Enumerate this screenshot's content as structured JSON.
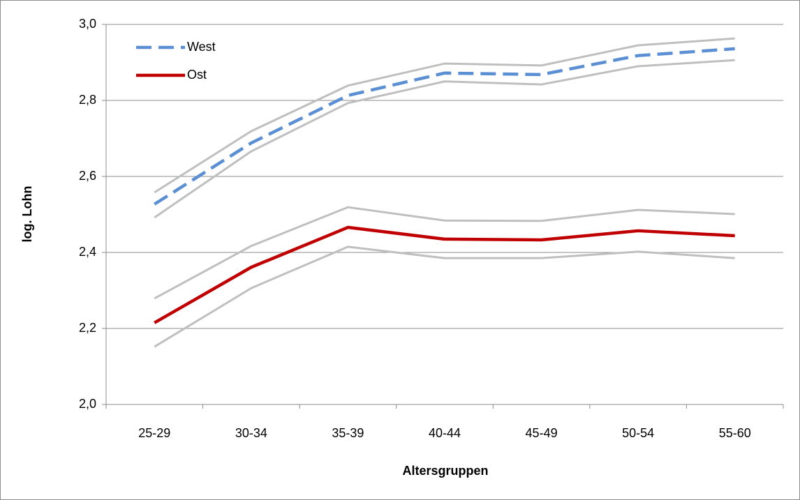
{
  "chart_data": {
    "type": "line",
    "x_label": "Altersgruppen",
    "y_label": "log. Lohn",
    "categories": [
      "25-29",
      "30-34",
      "35-39",
      "40-44",
      "45-49",
      "50-54",
      "55-60"
    ],
    "series": [
      {
        "color": "#bfbfbf",
        "style": "solid",
        "values": [
          2.558,
          2.719,
          2.839,
          2.897,
          2.892,
          2.945,
          2.963
        ]
      },
      {
        "color": "#bfbfbf",
        "style": "solid",
        "values": [
          2.492,
          2.666,
          2.793,
          2.85,
          2.842,
          2.89,
          2.906
        ]
      },
      {
        "color": "#bfbfbf",
        "style": "solid",
        "values": [
          2.279,
          2.417,
          2.519,
          2.484,
          2.483,
          2.512,
          2.501
        ]
      },
      {
        "color": "#bfbfbf",
        "style": "solid",
        "values": [
          2.152,
          2.306,
          2.415,
          2.385,
          2.385,
          2.402,
          2.385
        ]
      },
      {
        "name": "West",
        "color": "#5b8fd3",
        "style": "dashed",
        "values": [
          2.527,
          2.688,
          2.813,
          2.872,
          2.868,
          2.918,
          2.936
        ]
      },
      {
        "name": "Ost",
        "color": "#c00000",
        "style": "solid",
        "values": [
          2.215,
          2.361,
          2.466,
          2.435,
          2.433,
          2.457,
          2.444
        ]
      }
    ],
    "ylim": [
      2.0,
      3.0
    ],
    "yticks": [
      {
        "value": 2.0,
        "label": "2,0"
      },
      {
        "value": 2.2,
        "label": "2,2"
      },
      {
        "value": 2.4,
        "label": "2,4"
      },
      {
        "value": 2.6,
        "label": "2,6"
      },
      {
        "value": 2.8,
        "label": "2,8"
      },
      {
        "value": 3.0,
        "label": "3,0"
      }
    ],
    "grid": true,
    "legend": "top-left"
  }
}
